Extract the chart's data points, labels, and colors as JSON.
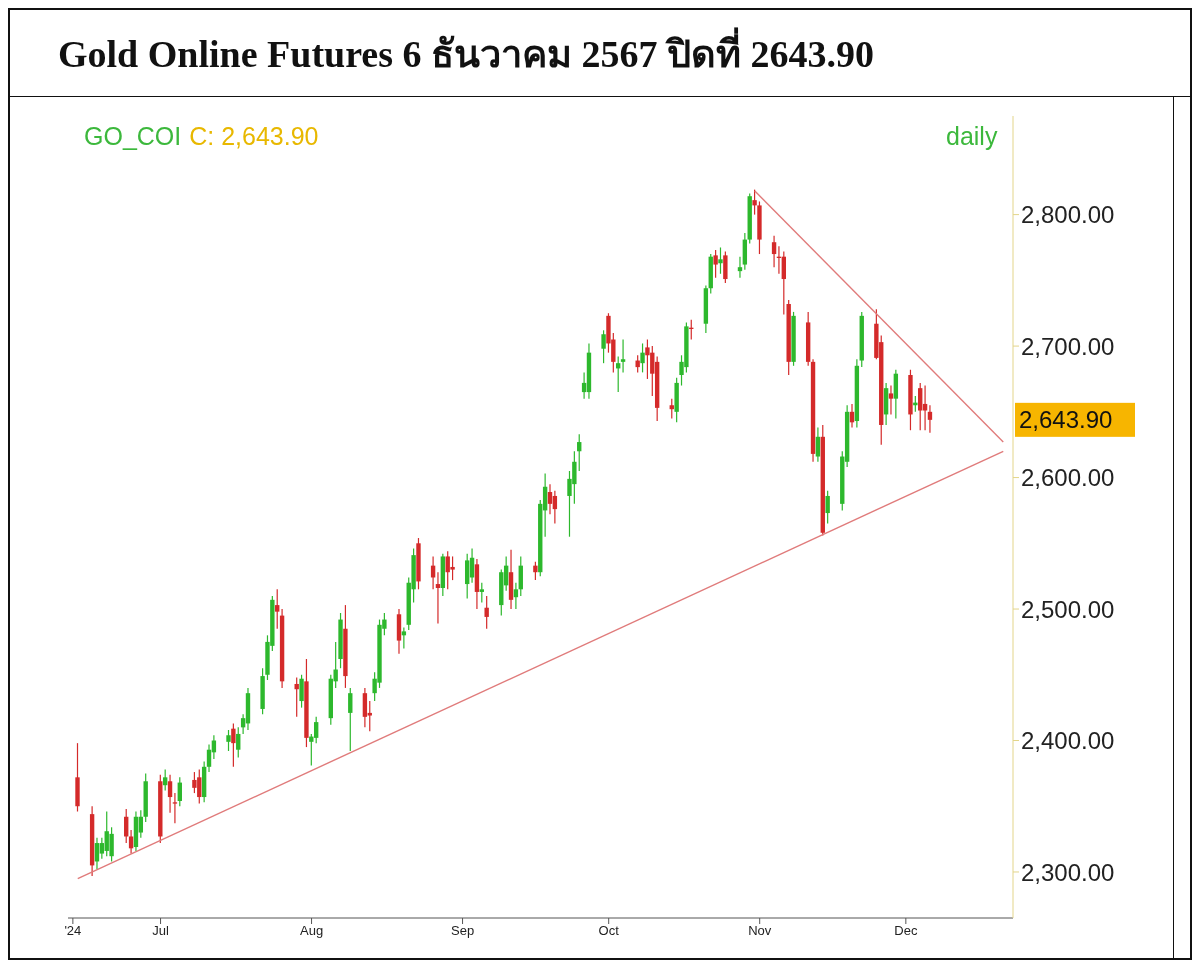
{
  "chart_data": {
    "type": "candlestick",
    "title": "Gold Online Futures 6 ธันวาคม 2567 ปิดที่ 2643.90",
    "x": [
      "2024-06-14",
      "2024-06-17",
      "2024-06-18",
      "2024-06-19",
      "2024-06-20",
      "2024-06-21",
      "2024-06-24",
      "2024-06-25",
      "2024-06-26",
      "2024-06-27",
      "2024-06-28",
      "2024-07-01",
      "2024-07-02",
      "2024-07-03",
      "2024-07-04",
      "2024-07-05",
      "2024-07-08",
      "2024-07-09",
      "2024-07-10",
      "2024-07-11",
      "2024-07-12",
      "2024-07-15",
      "2024-07-16",
      "2024-07-17",
      "2024-07-18",
      "2024-07-19",
      "2024-07-22",
      "2024-07-23",
      "2024-07-24",
      "2024-07-25",
      "2024-07-26",
      "2024-07-29",
      "2024-07-30",
      "2024-07-31",
      "2024-08-01",
      "2024-08-02",
      "2024-08-05",
      "2024-08-06",
      "2024-08-07",
      "2024-08-08",
      "2024-08-09",
      "2024-08-12",
      "2024-08-13",
      "2024-08-14",
      "2024-08-15",
      "2024-08-16",
      "2024-08-19",
      "2024-08-20",
      "2024-08-21",
      "2024-08-22",
      "2024-08-23",
      "2024-08-26",
      "2024-08-27",
      "2024-08-28",
      "2024-08-29",
      "2024-08-30",
      "2024-09-02",
      "2024-09-03",
      "2024-09-04",
      "2024-09-05",
      "2024-09-06",
      "2024-09-09",
      "2024-09-10",
      "2024-09-11",
      "2024-09-12",
      "2024-09-13",
      "2024-09-16",
      "2024-09-17",
      "2024-09-18",
      "2024-09-19",
      "2024-09-20",
      "2024-09-23",
      "2024-09-24",
      "2024-09-25",
      "2024-09-26",
      "2024-09-27",
      "2024-09-30",
      "2024-10-01",
      "2024-10-02",
      "2024-10-03",
      "2024-10-04",
      "2024-10-07",
      "2024-10-08",
      "2024-10-09",
      "2024-10-10",
      "2024-10-11",
      "2024-10-14",
      "2024-10-15",
      "2024-10-16",
      "2024-10-17",
      "2024-10-18",
      "2024-10-21",
      "2024-10-22",
      "2024-10-23",
      "2024-10-24",
      "2024-10-25",
      "2024-10-28",
      "2024-10-29",
      "2024-10-30",
      "2024-10-31",
      "2024-11-01",
      "2024-11-04",
      "2024-11-05",
      "2024-11-06",
      "2024-11-07",
      "2024-11-08",
      "2024-11-11",
      "2024-11-12",
      "2024-11-13",
      "2024-11-14",
      "2024-11-15",
      "2024-11-18",
      "2024-11-19",
      "2024-11-20",
      "2024-11-21",
      "2024-11-22",
      "2024-11-25",
      "2024-11-26",
      "2024-11-27",
      "2024-11-28",
      "2024-11-29",
      "2024-12-02",
      "2024-12-03",
      "2024-12-04",
      "2024-12-05",
      "2024-12-06"
    ],
    "ohlc": [
      [
        2372,
        2398,
        2346,
        2350
      ],
      [
        2344,
        2350,
        2297,
        2305
      ],
      [
        2308,
        2326,
        2302,
        2322
      ],
      [
        2314,
        2326,
        2310,
        2322
      ],
      [
        2316,
        2346,
        2312,
        2331
      ],
      [
        2312,
        2334,
        2308,
        2329
      ],
      [
        2342,
        2348,
        2322,
        2327
      ],
      [
        2327,
        2332,
        2314,
        2318
      ],
      [
        2319,
        2346,
        2316,
        2342
      ],
      [
        2330,
        2347,
        2326,
        2342
      ],
      [
        2342,
        2375,
        2338,
        2369
      ],
      [
        2369,
        2374,
        2322,
        2327
      ],
      [
        2366,
        2378,
        2362,
        2372
      ],
      [
        2369,
        2374,
        2345,
        2357
      ],
      [
        2353,
        2360,
        2337,
        2352
      ],
      [
        2354,
        2372,
        2350,
        2368
      ],
      [
        2370,
        2376,
        2360,
        2364
      ],
      [
        2372,
        2378,
        2352,
        2357
      ],
      [
        2357,
        2384,
        2353,
        2380
      ],
      [
        2380,
        2397,
        2376,
        2393
      ],
      [
        2391,
        2404,
        2386,
        2400
      ],
      [
        2399,
        2408,
        2392,
        2404
      ],
      [
        2409,
        2413,
        2380,
        2398
      ],
      [
        2393,
        2410,
        2387,
        2405
      ],
      [
        2410,
        2420,
        2405,
        2417
      ],
      [
        2413,
        2440,
        2408,
        2436
      ],
      [
        2424,
        2455,
        2420,
        2449
      ],
      [
        2450,
        2480,
        2446,
        2475
      ],
      [
        2472,
        2510,
        2468,
        2507
      ],
      [
        2503,
        2515,
        2485,
        2498
      ],
      [
        2495,
        2500,
        2440,
        2445
      ],
      [
        2443,
        2448,
        2418,
        2439
      ],
      [
        2430,
        2450,
        2425,
        2447
      ],
      [
        2445,
        2462,
        2395,
        2402
      ],
      [
        2399,
        2405,
        2381,
        2403
      ],
      [
        2402,
        2418,
        2398,
        2414
      ],
      [
        2417,
        2450,
        2412,
        2447
      ],
      [
        2445,
        2475,
        2440,
        2454
      ],
      [
        2462,
        2497,
        2455,
        2492
      ],
      [
        2485,
        2503,
        2440,
        2449
      ],
      [
        2421,
        2440,
        2392,
        2436
      ],
      [
        2436,
        2440,
        2410,
        2418
      ],
      [
        2421,
        2430,
        2407,
        2419
      ],
      [
        2436,
        2452,
        2430,
        2447
      ],
      [
        2444,
        2492,
        2440,
        2488
      ],
      [
        2485,
        2497,
        2480,
        2492
      ],
      [
        2496,
        2500,
        2466,
        2476
      ],
      [
        2480,
        2486,
        2470,
        2483
      ],
      [
        2488,
        2524,
        2484,
        2520
      ],
      [
        2515,
        2546,
        2505,
        2541
      ],
      [
        2550,
        2554,
        2515,
        2521
      ],
      [
        2533,
        2540,
        2515,
        2524
      ],
      [
        2519,
        2528,
        2489,
        2516
      ],
      [
        2516,
        2542,
        2510,
        2540
      ],
      [
        2540,
        2544,
        2515,
        2528
      ],
      [
        2532,
        2540,
        2522,
        2530
      ],
      [
        2519,
        2542,
        2508,
        2537
      ],
      [
        2524,
        2546,
        2520,
        2539
      ],
      [
        2534,
        2538,
        2500,
        2513
      ],
      [
        2513,
        2520,
        2505,
        2515
      ],
      [
        2501,
        2510,
        2485,
        2494
      ],
      [
        2503,
        2530,
        2495,
        2528
      ],
      [
        2518,
        2540,
        2514,
        2533
      ],
      [
        2528,
        2545,
        2500,
        2507
      ],
      [
        2509,
        2520,
        2500,
        2515
      ],
      [
        2515,
        2540,
        2510,
        2533
      ],
      [
        2533,
        2536,
        2522,
        2528
      ],
      [
        2528,
        2583,
        2525,
        2580
      ],
      [
        2575,
        2603,
        2555,
        2593
      ],
      [
        2589,
        2595,
        2572,
        2580
      ],
      [
        2586,
        2590,
        2565,
        2576
      ],
      [
        2586,
        2605,
        2555,
        2599
      ],
      [
        2595,
        2620,
        2580,
        2612
      ],
      [
        2620,
        2633,
        2605,
        2627
      ],
      [
        2665,
        2680,
        2660,
        2672
      ],
      [
        2665,
        2702,
        2660,
        2695
      ],
      [
        2698,
        2712,
        2687,
        2709
      ],
      [
        2723,
        2725,
        2695,
        2702
      ],
      [
        2705,
        2710,
        2680,
        2688
      ],
      [
        2683,
        2692,
        2665,
        2687
      ],
      [
        2688,
        2705,
        2680,
        2690
      ],
      [
        2689,
        2693,
        2680,
        2684
      ],
      [
        2687,
        2702,
        2680,
        2695
      ],
      [
        2699,
        2705,
        2675,
        2693
      ],
      [
        2695,
        2700,
        2662,
        2679
      ],
      [
        2688,
        2692,
        2643,
        2653
      ],
      [
        2655,
        2660,
        2645,
        2652
      ],
      [
        2650,
        2676,
        2642,
        2672
      ],
      [
        2678,
        2693,
        2670,
        2688
      ],
      [
        2684,
        2718,
        2680,
        2715
      ],
      [
        2714,
        2720,
        2705,
        2713
      ],
      [
        2717,
        2746,
        2710,
        2744
      ],
      [
        2744,
        2770,
        2740,
        2768
      ],
      [
        2769,
        2773,
        2752,
        2762
      ],
      [
        2763,
        2775,
        2755,
        2766
      ],
      [
        2769,
        2772,
        2748,
        2751
      ],
      [
        2757,
        2768,
        2752,
        2760
      ],
      [
        2762,
        2786,
        2758,
        2781
      ],
      [
        2781,
        2816,
        2778,
        2814
      ],
      [
        2811,
        2819,
        2800,
        2807
      ],
      [
        2807,
        2810,
        2770,
        2781
      ],
      [
        2779,
        2784,
        2760,
        2770
      ],
      [
        2768,
        2776,
        2755,
        2767
      ],
      [
        2768,
        2772,
        2724,
        2751
      ],
      [
        2732,
        2735,
        2678,
        2688
      ],
      [
        2688,
        2726,
        2685,
        2723
      ],
      [
        2718,
        2726,
        2685,
        2688
      ],
      [
        2688,
        2690,
        2612,
        2618
      ],
      [
        2616,
        2638,
        2612,
        2631
      ],
      [
        2631,
        2640,
        2556,
        2558
      ],
      [
        2573,
        2590,
        2565,
        2586
      ],
      [
        2580,
        2620,
        2575,
        2616
      ],
      [
        2612,
        2655,
        2608,
        2650
      ],
      [
        2650,
        2656,
        2638,
        2642
      ],
      [
        2643,
        2690,
        2638,
        2685
      ],
      [
        2689,
        2726,
        2684,
        2723
      ],
      [
        2717,
        2728,
        2690,
        2691
      ],
      [
        2703,
        2708,
        2625,
        2640
      ],
      [
        2648,
        2672,
        2640,
        2668
      ],
      [
        2664,
        2670,
        2648,
        2660
      ],
      [
        2660,
        2682,
        2645,
        2679
      ],
      [
        2678,
        2682,
        2636,
        2648
      ],
      [
        2655,
        2662,
        2650,
        2657
      ],
      [
        2668,
        2672,
        2636,
        2651
      ],
      [
        2656,
        2670,
        2636,
        2651
      ],
      [
        2650,
        2655,
        2634,
        2643.9
      ]
    ],
    "colors": [
      "#d42a2a",
      "#d42a2a",
      "#2db82d",
      "#2db82d",
      "#2db82d",
      "#2db82d",
      "#d42a2a",
      "#d42a2a",
      "#2db82d",
      "#2db82d",
      "#2db82d",
      "#d42a2a",
      "#2db82d",
      "#d42a2a",
      "#d42a2a",
      "#2db82d",
      "#d42a2a",
      "#d42a2a",
      "#2db82d",
      "#2db82d",
      "#2db82d",
      "#2db82d",
      "#d42a2a",
      "#2db82d",
      "#2db82d",
      "#2db82d",
      "#2db82d",
      "#2db82d",
      "#2db82d",
      "#d42a2a",
      "#d42a2a",
      "#d42a2a",
      "#2db82d",
      "#d42a2a",
      "#2db82d",
      "#2db82d",
      "#2db82d",
      "#2db82d",
      "#2db82d",
      "#d42a2a",
      "#2db82d",
      "#d42a2a",
      "#d42a2a",
      "#2db82d",
      "#2db82d",
      "#2db82d",
      "#d42a2a",
      "#2db82d",
      "#2db82d",
      "#2db82d",
      "#d42a2a",
      "#d42a2a",
      "#d42a2a",
      "#2db82d",
      "#d42a2a",
      "#d42a2a",
      "#2db82d",
      "#2db82d",
      "#d42a2a",
      "#2db82d",
      "#d42a2a",
      "#2db82d",
      "#2db82d",
      "#d42a2a",
      "#2db82d",
      "#2db82d",
      "#d42a2a",
      "#2db82d",
      "#2db82d",
      "#d42a2a",
      "#d42a2a",
      "#2db82d",
      "#2db82d",
      "#2db82d",
      "#2db82d",
      "#2db82d",
      "#2db82d",
      "#d42a2a",
      "#d42a2a",
      "#2db82d",
      "#2db82d",
      "#d42a2a",
      "#2db82d",
      "#d42a2a",
      "#d42a2a",
      "#d42a2a",
      "#d42a2a",
      "#2db82d",
      "#2db82d",
      "#2db82d",
      "#d42a2a",
      "#2db82d",
      "#2db82d",
      "#d42a2a",
      "#2db82d",
      "#d42a2a",
      "#2db82d",
      "#2db82d",
      "#2db82d",
      "#d42a2a",
      "#d42a2a",
      "#d42a2a",
      "#d42a2a",
      "#d42a2a",
      "#d42a2a",
      "#2db82d",
      "#d42a2a",
      "#d42a2a",
      "#2db82d",
      "#d42a2a",
      "#2db82d",
      "#2db82d",
      "#2db82d",
      "#d42a2a",
      "#2db82d",
      "#2db82d",
      "#d42a2a",
      "#d42a2a",
      "#2db82d",
      "#d42a2a",
      "#2db82d",
      "#d42a2a",
      "#2db82d",
      "#d42a2a",
      "#d42a2a",
      "#d42a2a"
    ],
    "series": [
      {
        "type": "line",
        "color": "#e07b7b",
        "x": [
          "2024-06-14",
          "2024-12-21"
        ],
        "values": [
          2295,
          2620
        ]
      },
      {
        "type": "line",
        "color": "#e07b7b",
        "x": [
          "2024-10-31",
          "2024-12-21"
        ],
        "values": [
          2818,
          2627
        ]
      }
    ],
    "xlim": [
      "2024-06-12",
      "2024-12-23"
    ],
    "xticks": [
      {
        "value": "2024-06-13",
        "label": "'24"
      },
      {
        "value": "2024-07-01",
        "label": "Jul"
      },
      {
        "value": "2024-08-01",
        "label": "Aug"
      },
      {
        "value": "2024-09-01",
        "label": "Sep"
      },
      {
        "value": "2024-10-01",
        "label": "Oct"
      },
      {
        "value": "2024-11-01",
        "label": "Nov"
      },
      {
        "value": "2024-12-01",
        "label": "Dec"
      }
    ],
    "ylim": [
      2265,
      2875
    ],
    "yticks": [
      {
        "value": 2300,
        "label": "2,300.00"
      },
      {
        "value": 2400,
        "label": "2,400.00"
      },
      {
        "value": 2500,
        "label": "2,500.00"
      },
      {
        "value": 2600,
        "label": "2,600.00"
      },
      {
        "value": 2700,
        "label": "2,700.00"
      },
      {
        "value": 2800,
        "label": "2,800.00"
      }
    ],
    "annotations": [
      "GO_COI",
      "C: 2,643.90",
      "daily",
      "2,643.90"
    ]
  }
}
